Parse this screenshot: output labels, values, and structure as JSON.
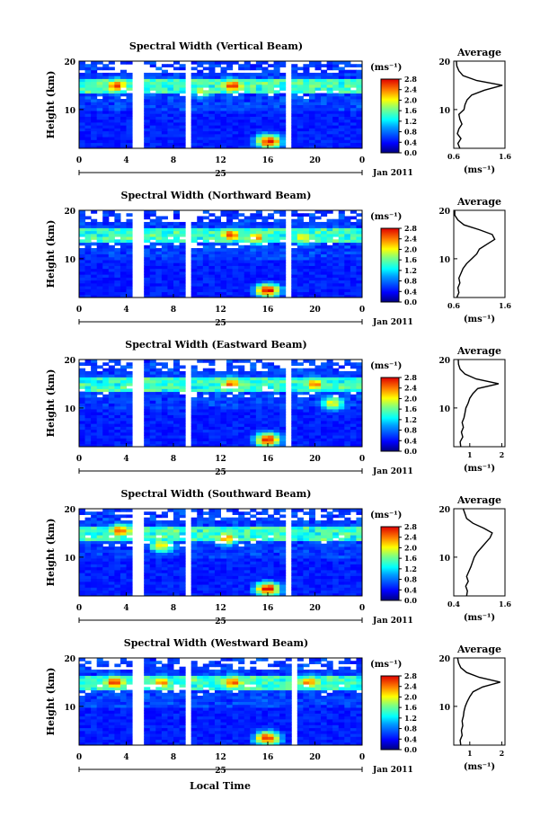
{
  "figure": {
    "xlabel": "Local Time",
    "date_label": "Jan 2011",
    "day_label": "25",
    "colorbar_unit": "(ms⁻¹)",
    "ylabel": "Height (km)",
    "avg_title": "Average",
    "avg_xlabel": "(ms⁻¹)"
  },
  "chart_data": [
    {
      "type": "heatmap",
      "title": "Spectral Width (Vertical Beam)",
      "x_ticks": [
        "0",
        "4",
        "8",
        "12",
        "16",
        "20",
        "0"
      ],
      "xlim": [
        0,
        24
      ],
      "y_ticks": [
        "10",
        "20"
      ],
      "ylim": [
        2,
        20
      ],
      "colorbar_ticks": [
        "0.0",
        "0.4",
        "0.8",
        "1.2",
        "1.6",
        "2.0",
        "2.4",
        "2.8"
      ],
      "colorbar_range": [
        0,
        2.8
      ],
      "gaps": [
        [
          4.4,
          5.4
        ],
        [
          8.8,
          9.6
        ],
        [
          17.6,
          17.9
        ]
      ],
      "hot_spots": [
        {
          "x": 3.2,
          "y": 15,
          "v": 2.4
        },
        {
          "x": 13,
          "y": 15,
          "v": 2.5
        },
        {
          "x": 16.1,
          "y": 3.5,
          "v": 2.6
        },
        {
          "x": 10.5,
          "y": 14,
          "v": 1.8
        }
      ],
      "average": {
        "xlim": [
          0.6,
          1.6
        ],
        "x_ticks": [
          "0.6",
          "1.6"
        ],
        "y_ticks": [
          "10",
          "20"
        ],
        "ylim": [
          2,
          20
        ],
        "profile": {
          "heights": [
            2,
            3,
            4,
            5,
            6,
            7,
            8,
            9,
            10,
            11,
            12,
            13,
            14,
            15,
            16,
            17,
            18,
            19,
            20
          ],
          "values": [
            0.72,
            0.68,
            0.74,
            0.67,
            0.7,
            0.76,
            0.72,
            0.7,
            0.8,
            0.82,
            0.86,
            0.95,
            1.2,
            1.55,
            1.05,
            0.78,
            0.7,
            0.66,
            0.65
          ]
        }
      }
    },
    {
      "type": "heatmap",
      "title": "Spectral Width (Northward Beam)",
      "x_ticks": [
        "0",
        "4",
        "8",
        "12",
        "16",
        "20",
        "0"
      ],
      "xlim": [
        0,
        24
      ],
      "y_ticks": [
        "10",
        "20"
      ],
      "ylim": [
        2,
        20
      ],
      "colorbar_ticks": [
        "0.0",
        "0.4",
        "0.8",
        "1.2",
        "1.6",
        "2.0",
        "2.4",
        "2.8"
      ],
      "colorbar_range": [
        0,
        2.8
      ],
      "gaps": [
        [
          4.4,
          5.4
        ],
        [
          8.8,
          9.6
        ],
        [
          17.6,
          17.9
        ]
      ],
      "hot_spots": [
        {
          "x": 12.9,
          "y": 15,
          "v": 2.4
        },
        {
          "x": 16,
          "y": 3.5,
          "v": 2.6
        },
        {
          "x": 15,
          "y": 14.5,
          "v": 2.2
        },
        {
          "x": 19,
          "y": 14.5,
          "v": 2.0
        }
      ],
      "average": {
        "xlim": [
          0.6,
          1.6
        ],
        "x_ticks": [
          "0.6",
          "1.6"
        ],
        "y_ticks": [
          "10",
          "20"
        ],
        "ylim": [
          2,
          20
        ],
        "profile": {
          "heights": [
            2,
            3,
            4,
            5,
            6,
            7,
            8,
            9,
            10,
            11,
            12,
            13,
            14,
            15,
            16,
            17,
            18,
            19,
            20
          ],
          "values": [
            0.66,
            0.7,
            0.68,
            0.72,
            0.7,
            0.74,
            0.78,
            0.85,
            0.95,
            1.05,
            1.1,
            1.25,
            1.4,
            1.35,
            1.1,
            0.8,
            0.68,
            0.62,
            0.62
          ]
        }
      }
    },
    {
      "type": "heatmap",
      "title": "Spectral Width (Eastward Beam)",
      "x_ticks": [
        "0",
        "4",
        "8",
        "12",
        "16",
        "20",
        "0"
      ],
      "xlim": [
        0,
        24
      ],
      "y_ticks": [
        "10",
        "20"
      ],
      "ylim": [
        2,
        20
      ],
      "colorbar_ticks": [
        "0.0",
        "0.4",
        "0.8",
        "1.2",
        "1.6",
        "2.0",
        "2.4",
        "2.8"
      ],
      "colorbar_range": [
        0,
        2.8
      ],
      "gaps": [
        [
          4.4,
          5.4
        ],
        [
          9.1,
          9.6
        ],
        [
          17.6,
          17.9
        ]
      ],
      "hot_spots": [
        {
          "x": 12.9,
          "y": 15,
          "v": 2.4
        },
        {
          "x": 16,
          "y": 3.5,
          "v": 2.6
        },
        {
          "x": 20,
          "y": 15,
          "v": 2.2
        },
        {
          "x": 21.5,
          "y": 11,
          "v": 1.9
        }
      ],
      "average": {
        "xlim": [
          0.5,
          2.1
        ],
        "x_ticks": [
          "1",
          "2"
        ],
        "y_ticks": [
          "10",
          "20"
        ],
        "ylim": [
          2,
          20
        ],
        "profile": {
          "heights": [
            2,
            3,
            4,
            5,
            6,
            7,
            8,
            9,
            10,
            11,
            12,
            13,
            14,
            15,
            16,
            17,
            18,
            19,
            20
          ],
          "values": [
            0.72,
            0.7,
            0.78,
            0.74,
            0.8,
            0.76,
            0.82,
            0.85,
            0.88,
            0.95,
            1.0,
            1.1,
            1.25,
            1.9,
            1.2,
            0.85,
            0.7,
            0.65,
            0.64
          ]
        }
      }
    },
    {
      "type": "heatmap",
      "title": "Spectral Width (Southward Beam)",
      "x_ticks": [
        "0",
        "4",
        "8",
        "12",
        "16",
        "20",
        "0"
      ],
      "xlim": [
        0,
        24
      ],
      "y_ticks": [
        "10",
        "20"
      ],
      "ylim": [
        2,
        20
      ],
      "colorbar_ticks": [
        "0.0",
        "0.4",
        "0.8",
        "1.2",
        "1.6",
        "2.0",
        "2.4",
        "2.8"
      ],
      "colorbar_range": [
        0,
        2.8
      ],
      "gaps": [
        [
          4.4,
          5.4
        ],
        [
          9.1,
          9.6
        ],
        [
          17.6,
          17.9
        ]
      ],
      "hot_spots": [
        {
          "x": 3.5,
          "y": 15.5,
          "v": 2.4
        },
        {
          "x": 16,
          "y": 3.5,
          "v": 2.6
        },
        {
          "x": 12.5,
          "y": 14,
          "v": 2.2
        },
        {
          "x": 7,
          "y": 12.5,
          "v": 2.0
        }
      ],
      "average": {
        "xlim": [
          0.4,
          1.6
        ],
        "x_ticks": [
          "0.4",
          "1.6"
        ],
        "y_ticks": [
          "10",
          "20"
        ],
        "ylim": [
          2,
          20
        ],
        "profile": {
          "heights": [
            2,
            3,
            4,
            5,
            6,
            7,
            8,
            9,
            10,
            11,
            12,
            13,
            14,
            15,
            16,
            17,
            18,
            19,
            20
          ],
          "values": [
            0.7,
            0.72,
            0.68,
            0.74,
            0.7,
            0.75,
            0.8,
            0.84,
            0.88,
            0.95,
            1.05,
            1.15,
            1.25,
            1.3,
            1.1,
            0.85,
            0.7,
            0.66,
            0.62
          ]
        }
      }
    },
    {
      "type": "heatmap",
      "title": "Spectral Width (Westward Beam)",
      "x_ticks": [
        "0",
        "4",
        "8",
        "12",
        "16",
        "20",
        "0"
      ],
      "xlim": [
        0,
        24
      ],
      "y_ticks": [
        "10",
        "20"
      ],
      "ylim": [
        2,
        20
      ],
      "colorbar_ticks": [
        "0.0",
        "0.4",
        "0.8",
        "1.2",
        "1.6",
        "2.0",
        "2.4",
        "2.8"
      ],
      "colorbar_range": [
        0,
        2.8
      ],
      "gaps": [
        [
          4.4,
          5.4
        ],
        [
          9.1,
          9.6
        ],
        [
          18.1,
          18.4
        ]
      ],
      "hot_spots": [
        {
          "x": 3,
          "y": 15,
          "v": 2.5
        },
        {
          "x": 16,
          "y": 3.5,
          "v": 2.6
        },
        {
          "x": 13,
          "y": 15,
          "v": 2.4
        },
        {
          "x": 7,
          "y": 15,
          "v": 2.2
        },
        {
          "x": 19.5,
          "y": 15,
          "v": 2.3
        }
      ],
      "average": {
        "xlim": [
          0.5,
          2.1
        ],
        "x_ticks": [
          "1",
          "2"
        ],
        "y_ticks": [
          "10",
          "20"
        ],
        "ylim": [
          2,
          20
        ],
        "profile": {
          "heights": [
            2,
            3,
            4,
            5,
            6,
            7,
            8,
            9,
            10,
            11,
            12,
            13,
            14,
            15,
            16,
            17,
            18,
            19,
            20
          ],
          "values": [
            0.72,
            0.7,
            0.76,
            0.74,
            0.78,
            0.76,
            0.8,
            0.82,
            0.86,
            0.92,
            1.0,
            1.1,
            1.4,
            1.95,
            1.3,
            0.9,
            0.72,
            0.65,
            0.62
          ]
        }
      }
    }
  ]
}
